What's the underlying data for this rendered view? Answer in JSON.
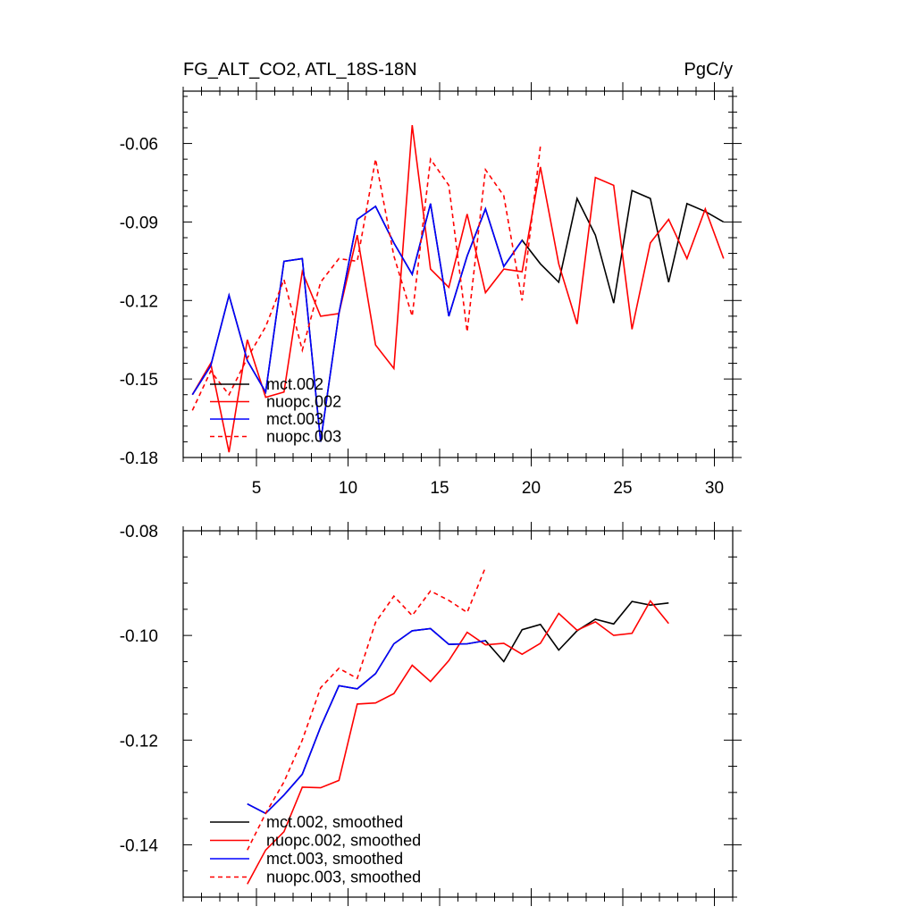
{
  "chart_data": [
    {
      "type": "line",
      "title": "FG_ALT_CO2, ATL_18S-18N",
      "units": "PgC/y",
      "xlim": [
        1,
        31
      ],
      "ylim": [
        -0.18,
        -0.04
      ],
      "xticks": [
        5,
        10,
        15,
        20,
        25,
        30
      ],
      "xtick_labels": [
        "5",
        "10",
        "15",
        "20",
        "25",
        "30"
      ],
      "yticks": [
        -0.18,
        -0.15,
        -0.12,
        -0.09,
        -0.06
      ],
      "ytick_labels": [
        "-0.18",
        "-0.15",
        "-0.12",
        "-0.09",
        "-0.06"
      ],
      "legend_position": "bottom-left",
      "series": [
        {
          "name": "mct.002",
          "color": "#000000",
          "dash": "solid",
          "x": [
            1.5,
            2.5,
            3.5,
            4.5,
            5.5,
            6.5,
            7.5,
            8.5,
            9.5,
            10.5,
            11.5,
            12.5,
            13.5,
            14.5,
            15.5,
            16.5,
            17.5,
            18.5,
            19.5,
            20.5,
            21.5,
            22.5,
            23.5,
            24.5,
            25.5,
            26.5,
            27.5,
            28.5,
            29.5,
            30.5
          ],
          "y": [
            -0.156,
            -0.145,
            -0.118,
            -0.143,
            -0.155,
            -0.105,
            -0.104,
            -0.174,
            -0.125,
            -0.089,
            -0.084,
            -0.098,
            -0.11,
            -0.083,
            -0.126,
            -0.103,
            -0.085,
            -0.107,
            -0.097,
            -0.106,
            -0.113,
            -0.081,
            -0.095,
            -0.121,
            -0.078,
            -0.081,
            -0.113,
            -0.083,
            -0.086,
            -0.09
          ]
        },
        {
          "name": "nuopc.002",
          "color": "#ff0000",
          "dash": "solid",
          "x": [
            1.5,
            2.5,
            3.5,
            4.5,
            5.5,
            6.5,
            7.5,
            8.5,
            9.5,
            10.5,
            11.5,
            12.5,
            13.5,
            14.5,
            15.5,
            16.5,
            17.5,
            18.5,
            19.5,
            20.5,
            21.5,
            22.5,
            23.5,
            24.5,
            25.5,
            26.5,
            27.5,
            28.5,
            29.5,
            30.5
          ],
          "y": [
            -0.156,
            -0.144,
            -0.178,
            -0.135,
            -0.157,
            -0.155,
            -0.109,
            -0.126,
            -0.125,
            -0.095,
            -0.137,
            -0.146,
            -0.053,
            -0.108,
            -0.115,
            -0.087,
            -0.117,
            -0.108,
            -0.109,
            -0.069,
            -0.106,
            -0.129,
            -0.073,
            -0.076,
            -0.131,
            -0.098,
            -0.089,
            -0.104,
            -0.085,
            -0.104
          ]
        },
        {
          "name": "mct.003",
          "color": "#0000ff",
          "dash": "solid",
          "x": [
            1.5,
            2.5,
            3.5,
            4.5,
            5.5,
            6.5,
            7.5,
            8.5,
            9.5,
            10.5,
            11.5,
            12.5,
            13.5,
            14.5,
            15.5,
            16.5,
            17.5,
            18.5,
            19.5
          ],
          "y": [
            -0.156,
            -0.145,
            -0.118,
            -0.143,
            -0.155,
            -0.105,
            -0.104,
            -0.174,
            -0.125,
            -0.089,
            -0.084,
            -0.098,
            -0.11,
            -0.083,
            -0.126,
            -0.103,
            -0.085,
            -0.107,
            -0.097
          ]
        },
        {
          "name": "nuopc.003",
          "color": "#ff0000",
          "dash": "dashed",
          "x": [
            1.5,
            2.5,
            3.5,
            4.5,
            5.5,
            6.5,
            7.5,
            8.5,
            9.5,
            10.5,
            11.5,
            12.5,
            13.5,
            14.5,
            15.5,
            16.5,
            17.5,
            18.5,
            19.5,
            20.5
          ],
          "y": [
            -0.162,
            -0.147,
            -0.156,
            -0.142,
            -0.13,
            -0.112,
            -0.139,
            -0.113,
            -0.104,
            -0.105,
            -0.066,
            -0.103,
            -0.126,
            -0.066,
            -0.076,
            -0.132,
            -0.07,
            -0.08,
            -0.12,
            -0.061
          ]
        }
      ]
    },
    {
      "type": "line",
      "xlim": [
        1,
        31
      ],
      "ylim": [
        -0.15,
        -0.08
      ],
      "xticks": [
        5,
        10,
        15,
        20,
        25,
        30
      ],
      "yticks": [
        -0.14,
        -0.12,
        -0.1,
        -0.08
      ],
      "ytick_labels": [
        "-0.14",
        "-0.12",
        "-0.10",
        "-0.08"
      ],
      "legend_position": "bottom-left",
      "series": [
        {
          "name": "mct.002, smoothed",
          "color": "#000000",
          "dash": "solid",
          "x": [
            4.5,
            5.5,
            6.5,
            7.5,
            8.5,
            9.5,
            10.5,
            11.5,
            12.5,
            13.5,
            14.5,
            15.5,
            16.5,
            17.5,
            18.5,
            19.5,
            20.5,
            21.5,
            22.5,
            23.5,
            24.5,
            25.5,
            26.5,
            27.5
          ],
          "y": [
            -0.1322,
            -0.134,
            -0.1305,
            -0.1265,
            -0.1175,
            -0.1096,
            -0.1102,
            -0.1073,
            -0.1016,
            -0.0991,
            -0.0987,
            -0.1017,
            -0.1016,
            -0.101,
            -0.105,
            -0.0989,
            -0.0979,
            -0.1028,
            -0.0991,
            -0.0969,
            -0.0978,
            -0.0935,
            -0.0942,
            -0.0938
          ]
        },
        {
          "name": "nuopc.002, smoothed",
          "color": "#ff0000",
          "dash": "solid",
          "x": [
            4.5,
            5.5,
            6.5,
            7.5,
            8.5,
            9.5,
            10.5,
            11.5,
            12.5,
            13.5,
            14.5,
            15.5,
            16.5,
            17.5,
            18.5,
            19.5,
            20.5,
            21.5,
            22.5,
            23.5,
            24.5,
            25.5,
            26.5,
            27.5
          ],
          "y": [
            -0.1475,
            -0.141,
            -0.1375,
            -0.129,
            -0.1291,
            -0.1277,
            -0.1131,
            -0.1129,
            -0.1111,
            -0.1057,
            -0.1088,
            -0.1048,
            -0.0994,
            -0.1018,
            -0.1015,
            -0.1036,
            -0.1015,
            -0.0958,
            -0.099,
            -0.0974,
            -0.1,
            -0.0996,
            -0.0934,
            -0.0977
          ]
        },
        {
          "name": "mct.003, smoothed",
          "color": "#0000ff",
          "dash": "solid",
          "x": [
            4.5,
            5.5,
            6.5,
            7.5,
            8.5,
            9.5,
            10.5,
            11.5,
            12.5,
            13.5,
            14.5,
            15.5,
            16.5,
            17.5
          ],
          "y": [
            -0.1322,
            -0.134,
            -0.1305,
            -0.1265,
            -0.1175,
            -0.1096,
            -0.1102,
            -0.1073,
            -0.1016,
            -0.0991,
            -0.0987,
            -0.1017,
            -0.1016,
            -0.101
          ]
        },
        {
          "name": "nuopc.003, smoothed",
          "color": "#ff0000",
          "dash": "dashed",
          "x": [
            4.5,
            5.5,
            6.5,
            7.5,
            8.5,
            9.5,
            10.5,
            11.5,
            12.5,
            13.5,
            14.5,
            15.5,
            16.5,
            17.5
          ],
          "y": [
            -0.141,
            -0.134,
            -0.128,
            -0.12,
            -0.11,
            -0.1063,
            -0.1082,
            -0.0975,
            -0.0925,
            -0.0962,
            -0.0915,
            -0.0933,
            -0.0956,
            -0.087
          ]
        }
      ]
    }
  ]
}
